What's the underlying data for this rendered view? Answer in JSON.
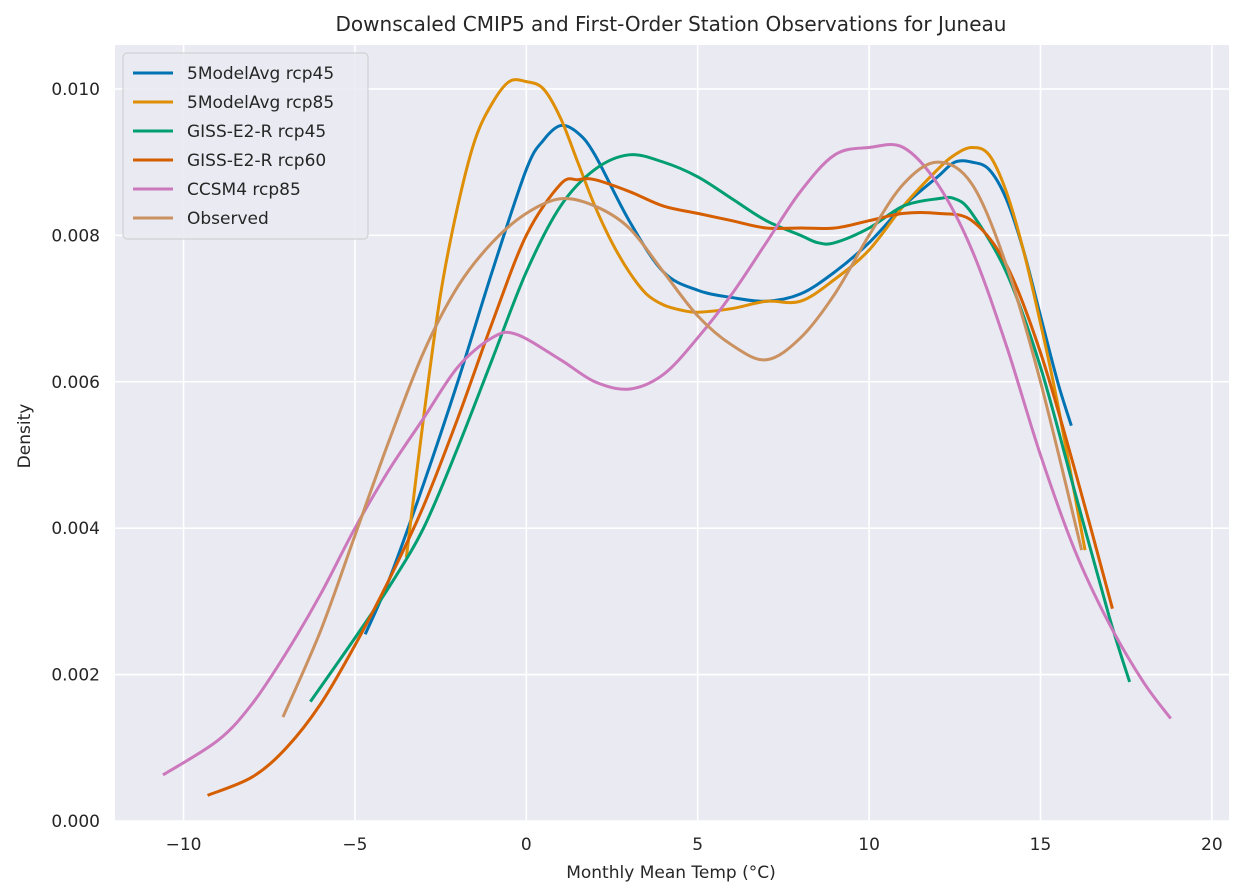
{
  "chart_data": {
    "type": "line",
    "title": "Downscaled CMIP5 and First-Order Station Observations for Juneau",
    "xlabel": "Monthly Mean Temp (°C)",
    "ylabel": "Density",
    "xlim": [
      -12,
      20.5
    ],
    "ylim": [
      0,
      0.0106
    ],
    "xticks": [
      -10,
      -5,
      0,
      5,
      10,
      15,
      20
    ],
    "xtick_labels": [
      "−10",
      "−5",
      "0",
      "5",
      "10",
      "15",
      "20"
    ],
    "yticks": [
      0,
      0.002,
      0.004,
      0.006,
      0.008,
      0.01
    ],
    "ytick_labels": [
      "0.000",
      "0.002",
      "0.004",
      "0.006",
      "0.008",
      "0.010"
    ],
    "grid": true,
    "legend_position": "top-left",
    "background": "#eaeaf2",
    "series": [
      {
        "name": "5ModelAvg rcp45",
        "color": "#0173b2",
        "x": [
          -4.7,
          -4,
          -3,
          -2,
          -1,
          0,
          0.5,
          1,
          1.5,
          2,
          3,
          4,
          5,
          6,
          7,
          8,
          9,
          10,
          11,
          12,
          12.5,
          13,
          13.5,
          14,
          14.5,
          15,
          15.5,
          15.9
        ],
        "y": [
          0.00255,
          0.0033,
          0.0046,
          0.006,
          0.0075,
          0.0089,
          0.0093,
          0.0095,
          0.0094,
          0.0091,
          0.0082,
          0.0075,
          0.00725,
          0.00715,
          0.0071,
          0.0072,
          0.0075,
          0.0079,
          0.0084,
          0.0088,
          0.009,
          0.009,
          0.0089,
          0.0085,
          0.0078,
          0.0069,
          0.006,
          0.0054
        ]
      },
      {
        "name": "5ModelAvg rcp85",
        "color": "#de8f05",
        "x": [
          -3.5,
          -3,
          -2.5,
          -2,
          -1.5,
          -1,
          -0.5,
          0,
          0.5,
          1,
          1.5,
          2,
          2.5,
          3,
          3.5,
          4,
          4.5,
          5,
          6,
          7,
          8,
          9,
          10,
          11,
          12,
          12.5,
          13,
          13.5,
          14,
          14.5,
          15,
          15.5,
          16.3
        ],
        "y": [
          0.0036,
          0.0055,
          0.0072,
          0.0084,
          0.0093,
          0.0098,
          0.0101,
          0.0101,
          0.01,
          0.0096,
          0.009,
          0.0084,
          0.0079,
          0.0075,
          0.0072,
          0.00705,
          0.00698,
          0.00695,
          0.007,
          0.0071,
          0.0071,
          0.0074,
          0.0078,
          0.0084,
          0.0089,
          0.0091,
          0.0092,
          0.0091,
          0.0086,
          0.0078,
          0.0068,
          0.0057,
          0.0037
        ]
      },
      {
        "name": "GISS-E2-R rcp45",
        "color": "#029e73",
        "x": [
          -6.3,
          -5,
          -4,
          -3,
          -2,
          -1,
          0,
          1,
          2,
          3,
          4,
          5,
          6,
          7,
          8,
          8.5,
          9,
          10,
          11,
          12,
          12.5,
          13,
          14,
          15,
          16,
          17,
          17.6
        ],
        "y": [
          0.00163,
          0.0025,
          0.0032,
          0.004,
          0.0051,
          0.0063,
          0.0075,
          0.0084,
          0.0089,
          0.0091,
          0.009,
          0.0088,
          0.0085,
          0.0082,
          0.008,
          0.0079,
          0.0079,
          0.0081,
          0.0084,
          0.0085,
          0.0085,
          0.0083,
          0.0075,
          0.0062,
          0.0045,
          0.0028,
          0.0019
        ]
      },
      {
        "name": "GISS-E2-R rcp60",
        "color": "#d55e00",
        "x": [
          -9.3,
          -8,
          -7,
          -6,
          -5,
          -4,
          -3,
          -2,
          -1,
          0,
          1,
          1.5,
          2,
          3,
          4,
          5,
          6,
          7,
          8,
          9,
          10,
          11,
          12,
          13,
          14,
          15,
          16,
          17.1
        ],
        "y": [
          0.00035,
          0.0006,
          0.001,
          0.0016,
          0.0024,
          0.0033,
          0.0043,
          0.0055,
          0.0068,
          0.008,
          0.0087,
          0.00876,
          0.00876,
          0.0086,
          0.0084,
          0.0083,
          0.0082,
          0.0081,
          0.0081,
          0.0081,
          0.0082,
          0.0083,
          0.0083,
          0.0082,
          0.0076,
          0.0064,
          0.0048,
          0.0029
        ]
      },
      {
        "name": "CCSM4 rcp85",
        "color": "#cc78bc",
        "x": [
          -10.6,
          -9,
          -8,
          -7,
          -6,
          -5,
          -4,
          -3,
          -2,
          -1,
          -0.3,
          1,
          2,
          3,
          4,
          5,
          6,
          7,
          8,
          9,
          10,
          11,
          12,
          13,
          14,
          15,
          16,
          17,
          18,
          18.8
        ],
        "y": [
          0.00063,
          0.0011,
          0.0016,
          0.0023,
          0.0031,
          0.004,
          0.0048,
          0.0055,
          0.0062,
          0.0066,
          0.00665,
          0.0063,
          0.006,
          0.0059,
          0.0061,
          0.0066,
          0.0072,
          0.0079,
          0.0086,
          0.0091,
          0.0092,
          0.0092,
          0.0087,
          0.0078,
          0.0065,
          0.005,
          0.0037,
          0.0027,
          0.0019,
          0.0014
        ]
      },
      {
        "name": "Observed",
        "color": "#ca9161",
        "x": [
          -7.1,
          -6,
          -5,
          -4,
          -3,
          -2,
          -1,
          0,
          1,
          2,
          3,
          4,
          5,
          6,
          7,
          8,
          9,
          10,
          11,
          12,
          13,
          14,
          15,
          16.2
        ],
        "y": [
          0.00142,
          0.0026,
          0.0039,
          0.0052,
          0.0064,
          0.0073,
          0.0079,
          0.0083,
          0.0085,
          0.0084,
          0.0081,
          0.0075,
          0.0069,
          0.0065,
          0.0063,
          0.0066,
          0.0072,
          0.008,
          0.0087,
          0.009,
          0.0087,
          0.0076,
          0.006,
          0.0037
        ]
      }
    ]
  }
}
